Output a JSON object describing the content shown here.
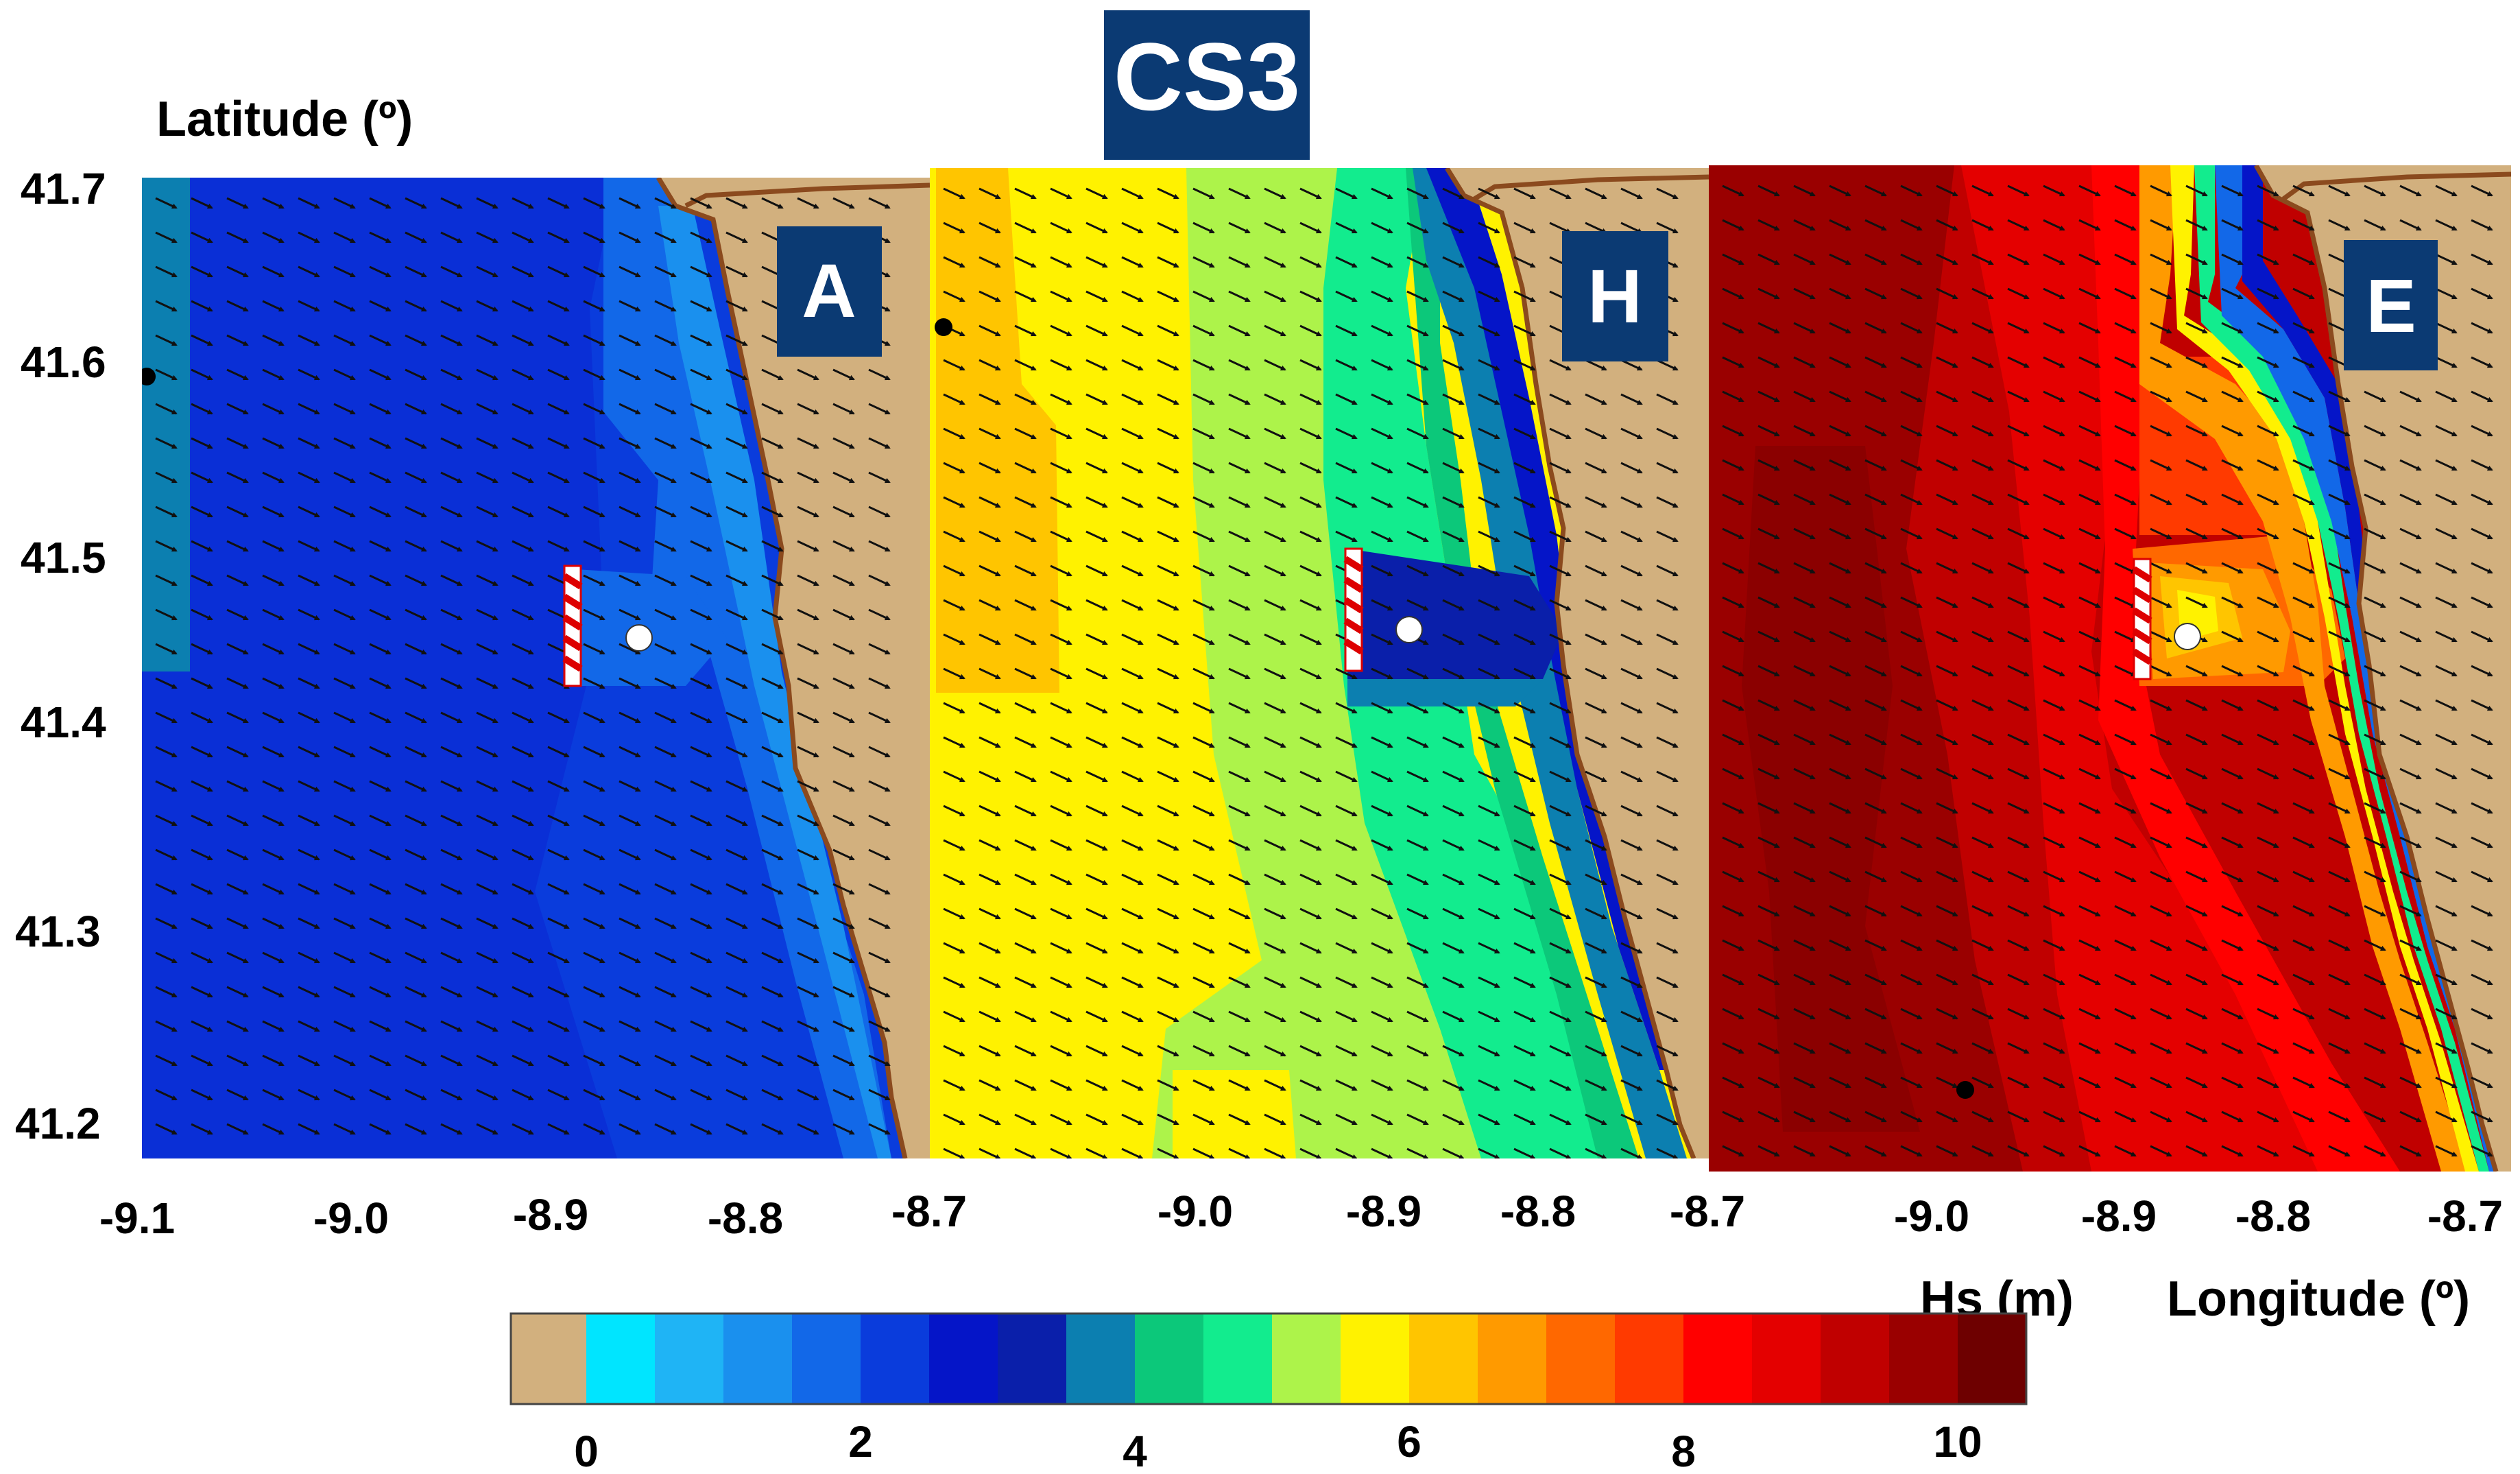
{
  "figure": {
    "case_title": "CS3",
    "latitude_axis_label": "Latitude (º)",
    "longitude_axis_label": "Longitude (º)",
    "colorbar_label": "Hs (m)"
  },
  "panels": [
    {
      "id": "A",
      "label": "A",
      "lon_ticks": [
        "-9.1",
        "-9.0",
        "-8.9",
        "-8.8",
        "-8.7"
      ],
      "lon_tick_values": [
        -9.1,
        -9.0,
        -8.9,
        -8.8,
        -8.7
      ],
      "offshore_hs_m": 2.6,
      "lee_hs_m": 1.8
    },
    {
      "id": "H",
      "label": "H",
      "lon_ticks": [
        "-9.0",
        "-8.9",
        "-8.8",
        "-8.7"
      ],
      "lon_tick_values": [
        -9.0,
        -8.9,
        -8.8,
        -8.7
      ],
      "offshore_hs_m": 6.0,
      "lee_hs_m": 2.8
    },
    {
      "id": "E",
      "label": "E",
      "lon_ticks": [
        "-9.0",
        "-8.9",
        "-8.8",
        "-8.7"
      ],
      "lon_tick_values": [
        -9.0,
        -8.9,
        -8.8,
        -8.7
      ],
      "offshore_hs_m": 9.2,
      "lee_hs_m": 6.0
    }
  ],
  "lat_ticks": [
    "41.7",
    "41.6",
    "41.5",
    "41.4",
    "41.3",
    "41.2"
  ],
  "lat_tick_values": [
    41.7,
    41.6,
    41.5,
    41.4,
    41.3,
    41.2
  ],
  "colorbar": {
    "land_color": "#d2b07e",
    "min": 0,
    "max": 10,
    "step": 0.5,
    "colors": [
      "#00e5ff",
      "#1fb4f5",
      "#1a90ee",
      "#1268e8",
      "#0a3cdc",
      "#0515c8",
      "#0a1faa",
      "#0c7fb0",
      "#0cc87a",
      "#12ec8e",
      "#adf34a",
      "#fff200",
      "#ffc500",
      "#ff9a00",
      "#ff6800",
      "#ff3a00",
      "#ff0000",
      "#e40000",
      "#c00000",
      "#9a0000",
      "#6e0000"
    ],
    "tick_labels": [
      "0",
      "2",
      "4",
      "6",
      "8",
      "10"
    ],
    "tick_values": [
      0,
      2,
      4,
      6,
      8,
      10
    ]
  }
}
